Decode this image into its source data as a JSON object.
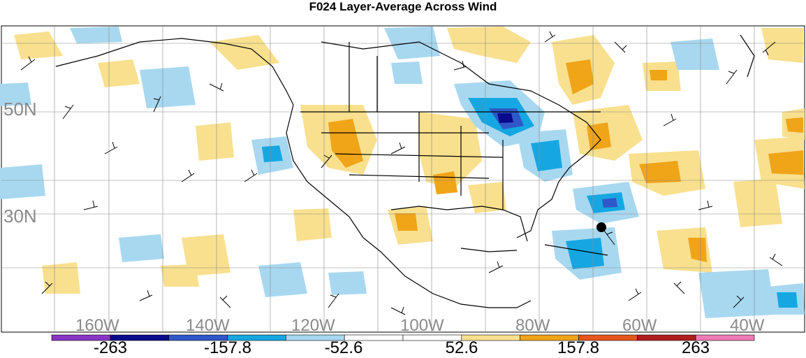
{
  "title": "F024 Layer-Average Across Wind",
  "latitude_labels": [
    "50N",
    "30N"
  ],
  "longitude_labels": [
    "160W",
    "140W",
    "120W",
    "100W",
    "80W",
    "60W",
    "40W"
  ],
  "colorbar": {
    "colors": [
      "#8a35c4",
      "#0a0a8c",
      "#2f57c8",
      "#16a7e3",
      "#a8d8f0",
      "#ffffff",
      "#ffffff",
      "#f8e08e",
      "#f0a418",
      "#e8561e",
      "#b01d1d",
      "#f07ab4"
    ],
    "tick_labels": [
      "-263",
      "-157.8",
      "-52.6",
      "52.6",
      "157.8",
      "263"
    ]
  },
  "colors": {
    "land_outline": "#000000",
    "grid": "#888888",
    "marker": "#000000"
  }
}
